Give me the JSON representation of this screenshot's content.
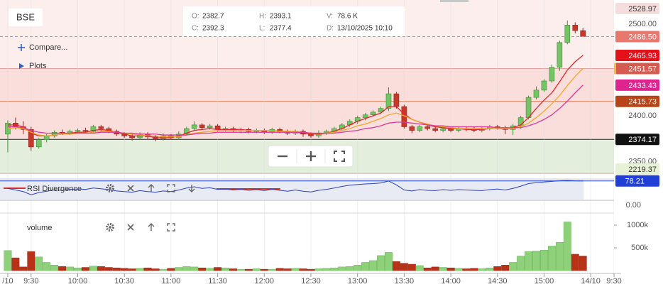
{
  "chart_data": [
    {
      "type": "candlestick",
      "symbol": "BSE",
      "info": [
        {
          "key": "O:",
          "value": 2382.7
        },
        {
          "key": "H:",
          "value": 2393.1
        },
        {
          "key": "V:",
          "value": "78.6 K"
        },
        {
          "key": "C:",
          "value": 2392.3
        },
        {
          "key": "L:",
          "value": 2377.4
        },
        {
          "key": "D:",
          "value": "13/10/2025 10:10"
        }
      ],
      "menu": [
        "Compare...",
        "Plots"
      ],
      "open": [
        2380,
        2392,
        2388,
        2385,
        2366,
        2374,
        2378,
        2382,
        2381,
        2383,
        2384,
        2383,
        2388,
        2386,
        2383,
        2380,
        2378,
        2376,
        2380,
        2377,
        2375,
        2378,
        2376,
        2380,
        2386,
        2390,
        2387,
        2389,
        2385,
        2386,
        2384,
        2385,
        2383,
        2384,
        2382,
        2385,
        2383,
        2381,
        2383,
        2380,
        2378,
        2381,
        2383,
        2386,
        2390,
        2394,
        2398,
        2401,
        2404,
        2408,
        2424,
        2410,
        2388,
        2384,
        2388,
        2386,
        2384,
        2386,
        2384,
        2386,
        2385,
        2384,
        2386,
        2388,
        2387,
        2385,
        2389,
        2398,
        2420,
        2428,
        2438,
        2453,
        2480,
        2499,
        2493
      ],
      "high": [
        2395,
        2398,
        2394,
        2388,
        2376,
        2380,
        2384,
        2385,
        2385,
        2386,
        2387,
        2390,
        2390,
        2388,
        2385,
        2382,
        2380,
        2382,
        2382,
        2379,
        2381,
        2380,
        2383,
        2388,
        2394,
        2392,
        2391,
        2391,
        2388,
        2388,
        2387,
        2387,
        2386,
        2386,
        2387,
        2387,
        2385,
        2385,
        2385,
        2382,
        2384,
        2385,
        2388,
        2392,
        2396,
        2400,
        2403,
        2406,
        2410,
        2431,
        2426,
        2412,
        2390,
        2390,
        2390,
        2388,
        2388,
        2388,
        2388,
        2388,
        2388,
        2388,
        2390,
        2390,
        2389,
        2391,
        2400,
        2422,
        2432,
        2440,
        2456,
        2482,
        2504,
        2502,
        2496
      ],
      "low": [
        2360,
        2385,
        2380,
        2362,
        2364,
        2371,
        2376,
        2379,
        2379,
        2381,
        2381,
        2381,
        2383,
        2381,
        2378,
        2376,
        2373,
        2374,
        2374,
        2372,
        2373,
        2374,
        2374,
        2379,
        2384,
        2385,
        2385,
        2383,
        2383,
        2382,
        2381,
        2381,
        2381,
        2380,
        2380,
        2381,
        2379,
        2379,
        2377,
        2376,
        2376,
        2379,
        2381,
        2384,
        2388,
        2391,
        2395,
        2399,
        2402,
        2405,
        2408,
        2386,
        2381,
        2382,
        2384,
        2382,
        2382,
        2382,
        2382,
        2383,
        2382,
        2382,
        2384,
        2385,
        2380,
        2379,
        2386,
        2396,
        2418,
        2426,
        2436,
        2449,
        2478,
        2490,
        2486
      ],
      "close": [
        2392,
        2388,
        2385,
        2366,
        2374,
        2378,
        2382,
        2381,
        2383,
        2384,
        2383,
        2388,
        2386,
        2383,
        2380,
        2378,
        2376,
        2380,
        2377,
        2375,
        2378,
        2376,
        2380,
        2386,
        2390,
        2387,
        2389,
        2385,
        2386,
        2384,
        2385,
        2383,
        2384,
        2382,
        2385,
        2383,
        2381,
        2383,
        2380,
        2378,
        2381,
        2383,
        2386,
        2390,
        2394,
        2398,
        2401,
        2404,
        2408,
        2424,
        2410,
        2388,
        2384,
        2388,
        2386,
        2384,
        2386,
        2384,
        2386,
        2385,
        2384,
        2386,
        2388,
        2387,
        2385,
        2389,
        2398,
        2420,
        2428,
        2438,
        2453,
        2480,
        2499,
        2493,
        2486.5
      ],
      "last_close_label": "2486.50",
      "last_close_color": "#e8786e",
      "up_color": "#74c365",
      "down_color": "#c8382a",
      "ylim": [
        2336.4,
        2526.4
      ],
      "yticks": [
        {
          "value": 2500,
          "label": "2500.00"
        },
        {
          "value": 2400,
          "label": "2400.00"
        },
        {
          "value": 2350,
          "label": "2350.00"
        }
      ],
      "lines": [
        {
          "color": "#e3262b",
          "label_color": "#e3111a",
          "values": [
            2390,
            2390,
            2388,
            2381,
            2378,
            2378,
            2379,
            2380,
            2381,
            2382,
            2382,
            2384,
            2385,
            2384,
            2382,
            2380,
            2378,
            2378,
            2378,
            2376,
            2376,
            2376,
            2378,
            2381,
            2384,
            2385,
            2386,
            2385,
            2385,
            2385,
            2385,
            2384,
            2384,
            2384,
            2384,
            2383,
            2383,
            2382,
            2381,
            2380,
            2380,
            2381,
            2383,
            2386,
            2390,
            2394,
            2397,
            2400,
            2403,
            2410,
            2410,
            2402,
            2396,
            2393,
            2390,
            2388,
            2387,
            2386,
            2386,
            2385,
            2385,
            2385,
            2386,
            2386,
            2386,
            2387,
            2390,
            2398,
            2408,
            2417,
            2425,
            2437,
            2450,
            2459,
            2465.93
          ]
        },
        {
          "color": "#f2a72c",
          "values": [
            2386,
            2387,
            2386,
            2382,
            2379,
            2378,
            2379,
            2380,
            2380,
            2381,
            2381,
            2382,
            2383,
            2383,
            2382,
            2381,
            2380,
            2379,
            2378,
            2378,
            2377,
            2377,
            2377,
            2379,
            2381,
            2382,
            2383,
            2384,
            2384,
            2384,
            2384,
            2384,
            2384,
            2384,
            2384,
            2383,
            2383,
            2383,
            2382,
            2381,
            2381,
            2381,
            2382,
            2384,
            2386,
            2389,
            2391,
            2394,
            2397,
            2401,
            2403,
            2400,
            2396,
            2393,
            2391,
            2389,
            2388,
            2387,
            2386,
            2386,
            2386,
            2386,
            2386,
            2386,
            2386,
            2386,
            2388,
            2392,
            2398,
            2405,
            2413,
            2422,
            2433,
            2443,
            2451.57
          ]
        },
        {
          "color": "#d93a9b",
          "label_color": "#e0248f",
          "values": [
            2388,
            2388,
            2387,
            2384,
            2382,
            2381,
            2381,
            2381,
            2381,
            2381,
            2381,
            2381,
            2382,
            2382,
            2382,
            2381,
            2381,
            2380,
            2380,
            2380,
            2379,
            2379,
            2379,
            2379,
            2380,
            2381,
            2381,
            2382,
            2382,
            2382,
            2382,
            2382,
            2382,
            2382,
            2382,
            2382,
            2382,
            2382,
            2382,
            2381,
            2381,
            2381,
            2381,
            2382,
            2383,
            2384,
            2386,
            2387,
            2389,
            2392,
            2393,
            2393,
            2392,
            2391,
            2390,
            2389,
            2389,
            2388,
            2388,
            2388,
            2388,
            2388,
            2388,
            2387,
            2387,
            2387,
            2387,
            2389,
            2392,
            2396,
            2401,
            2408,
            2416,
            2425,
            2433.43
          ]
        }
      ],
      "levels": [
        {
          "value": 2528.97,
          "color": "#f6dede",
          "text_color": "#333333"
        },
        {
          "value": 2451.57,
          "color": "#d65a4f",
          "text_color": "#ffffff",
          "line_color": "#e4a3a0",
          "border_color": "#f2c12e",
          "fill": "#f9dedc"
        },
        {
          "value": 2415.73,
          "color": "#b84316",
          "text_color": "#ffffff",
          "line_color": "#d8784c"
        },
        {
          "value": 2374.17,
          "color": "#111111",
          "text_color": "#ffffff",
          "line_color": "#222222",
          "fill": "#e4eedd"
        },
        {
          "value": 2219.37,
          "color": "#e6f1d6",
          "text_color": "#333333",
          "line_color": "#e8b0b0"
        }
      ]
    },
    {
      "type": "line",
      "title": "RSI Divergence",
      "color": "#2a3fbf",
      "label_color": "#1f3fd6",
      "zero_label": "0.00",
      "ylim": [
        20,
        80
      ],
      "values": [
        55,
        50,
        45,
        35,
        42,
        46,
        50,
        49,
        52,
        53,
        52,
        56,
        54,
        51,
        47,
        45,
        43,
        48,
        45,
        43,
        47,
        45,
        50,
        56,
        60,
        55,
        57,
        52,
        53,
        50,
        52,
        49,
        51,
        48,
        52,
        49,
        46,
        50,
        46,
        44,
        49,
        52,
        56,
        61,
        65,
        67,
        69,
        70,
        72,
        78,
        66,
        50,
        47,
        51,
        49,
        48,
        51,
        49,
        51,
        50,
        49,
        48,
        51,
        53,
        50,
        55,
        62,
        70,
        73,
        75,
        77,
        79,
        80,
        78.5,
        78.21
      ]
    },
    {
      "type": "bar",
      "title": "volume",
      "up_color": "#8fd17a",
      "down_color": "#b83218",
      "ylim": [
        0,
        1265000
      ],
      "yticks": [
        {
          "value": 500000,
          "label": "500k"
        },
        {
          "value": 1000000,
          "label": "1000k"
        }
      ],
      "values": [
        440000,
        280000,
        80000,
        420000,
        300000,
        180000,
        120000,
        90000,
        80000,
        60000,
        70000,
        100000,
        90000,
        70000,
        60000,
        50000,
        40000,
        50000,
        60000,
        40000,
        30000,
        50000,
        70000,
        90000,
        80000,
        60000,
        50000,
        70000,
        60000,
        40000,
        30000,
        30000,
        40000,
        30000,
        30000,
        50000,
        40000,
        50000,
        40000,
        30000,
        40000,
        50000,
        60000,
        80000,
        90000,
        120000,
        180000,
        220000,
        330000,
        400000,
        200000,
        160000,
        140000,
        110000,
        60000,
        80000,
        70000,
        60000,
        50000,
        40000,
        50000,
        40000,
        60000,
        90000,
        120000,
        180000,
        320000,
        420000,
        430000,
        450000,
        540000,
        620000,
        1070000,
        360000,
        320000
      ],
      "xlim": [
        -1,
        78
      ],
      "xticks": [
        {
          "value": 0,
          "label": "/10"
        },
        {
          "value": 3,
          "label": "9:30"
        },
        {
          "value": 9,
          "label": "10:00"
        },
        {
          "value": 15,
          "label": "10:30"
        },
        {
          "value": 21,
          "label": "11:00"
        },
        {
          "value": 27,
          "label": "11:30"
        },
        {
          "value": 33,
          "label": "12:00"
        },
        {
          "value": 39,
          "label": "12:30"
        },
        {
          "value": 45,
          "label": "13:00"
        },
        {
          "value": 51,
          "label": "13:30"
        },
        {
          "value": 57,
          "label": "14:00"
        },
        {
          "value": 63,
          "label": "14:30"
        },
        {
          "value": 69,
          "label": "15:00"
        },
        {
          "value": 75,
          "label": "14/10"
        },
        {
          "value": 78,
          "label": "9:30"
        }
      ]
    }
  ]
}
